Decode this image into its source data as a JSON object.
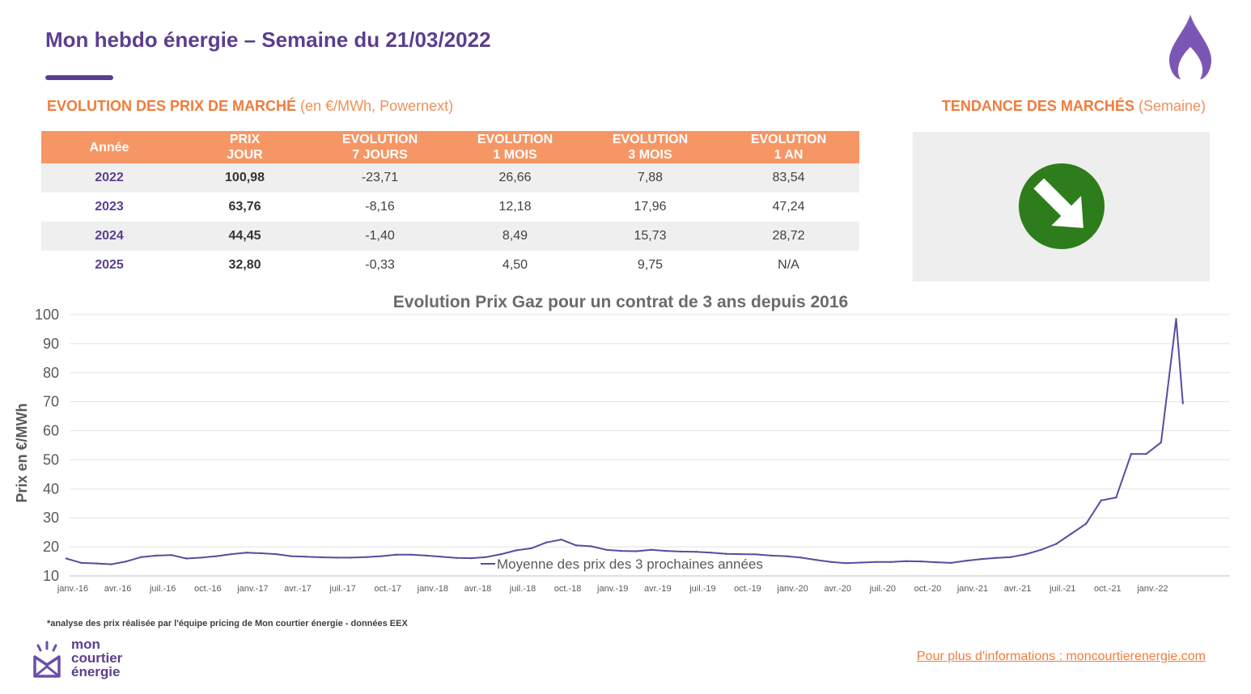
{
  "header": {
    "title": "Mon hebdo énergie – Semaine du 21/03/2022"
  },
  "prices_section": {
    "heading_strong": "EVOLUTION DES PRIX DE MARCHÉ",
    "heading_light": "(en €/MWh, Powernext)",
    "columns": [
      {
        "line1": "Année",
        "line2": ""
      },
      {
        "line1": "PRIX",
        "line2": "JOUR"
      },
      {
        "line1": "EVOLUTION",
        "line2": "7 JOURS"
      },
      {
        "line1": "EVOLUTION",
        "line2": "1 MOIS"
      },
      {
        "line1": "EVOLUTION",
        "line2": "3 MOIS"
      },
      {
        "line1": "EVOLUTION",
        "line2": "1 AN"
      }
    ],
    "rows": [
      {
        "year": "2022",
        "day": "100,98",
        "d7": "-23,71",
        "m1": "26,66",
        "m3": "7,88",
        "y1": "83,54"
      },
      {
        "year": "2023",
        "day": "63,76",
        "d7": "-8,16",
        "m1": "12,18",
        "m3": "17,96",
        "y1": "47,24"
      },
      {
        "year": "2024",
        "day": "44,45",
        "d7": "-1,40",
        "m1": "8,49",
        "m3": "15,73",
        "y1": "28,72"
      },
      {
        "year": "2025",
        "day": "32,80",
        "d7": "-0,33",
        "m1": "4,50",
        "m3": "9,75",
        "y1": "N/A"
      }
    ]
  },
  "trend_section": {
    "heading_strong": "TENDANCE DES MARCHÉS",
    "heading_light": "(Semaine)",
    "trend_icon": "down-right-arrow-icon",
    "trend_color": "#2e7d1c"
  },
  "chart_data": {
    "type": "line",
    "title": "Evolution Prix Gaz pour un contrat de 3 ans depuis 2016",
    "ylabel": "Prix en €/MWh",
    "xlabel": "",
    "ylim": [
      10,
      100
    ],
    "yticks": [
      10,
      20,
      30,
      40,
      50,
      60,
      70,
      80,
      90,
      100
    ],
    "x_tick_labels": [
      "janv.-16",
      "avr.-16",
      "juil.-16",
      "oct.-16",
      "janv.-17",
      "avr.-17",
      "juil.-17",
      "oct.-17",
      "janv.-18",
      "avr.-18",
      "juil.-18",
      "oct.-18",
      "janv.-19",
      "avr.-19",
      "juil.-19",
      "oct.-19",
      "janv.-20",
      "avr.-20",
      "juil.-20",
      "oct.-20",
      "janv.-21",
      "avr.-21",
      "juil.-21",
      "oct.-21",
      "janv.-22"
    ],
    "grid": true,
    "legend_position": "bottom-inside",
    "series": [
      {
        "name": "Moyenne des prix des 3 prochaines années",
        "color": "#5b4a9e",
        "points": [
          [
            "2016-01",
            16
          ],
          [
            "2016-02",
            14.5
          ],
          [
            "2016-03",
            14.3
          ],
          [
            "2016-04",
            14
          ],
          [
            "2016-05",
            15
          ],
          [
            "2016-06",
            16.5
          ],
          [
            "2016-07",
            17
          ],
          [
            "2016-08",
            17.2
          ],
          [
            "2016-09",
            16
          ],
          [
            "2016-10",
            16.3
          ],
          [
            "2016-11",
            16.8
          ],
          [
            "2016-12",
            17.5
          ],
          [
            "2017-01",
            18
          ],
          [
            "2017-02",
            17.8
          ],
          [
            "2017-03",
            17.5
          ],
          [
            "2017-04",
            16.8
          ],
          [
            "2017-05",
            16.6
          ],
          [
            "2017-06",
            16.4
          ],
          [
            "2017-07",
            16.3
          ],
          [
            "2017-08",
            16.3
          ],
          [
            "2017-09",
            16.5
          ],
          [
            "2017-10",
            16.8
          ],
          [
            "2017-11",
            17.3
          ],
          [
            "2017-12",
            17.3
          ],
          [
            "2018-01",
            17
          ],
          [
            "2018-02",
            16.6
          ],
          [
            "2018-03",
            16.2
          ],
          [
            "2018-04",
            16.1
          ],
          [
            "2018-05",
            16.5
          ],
          [
            "2018-06",
            17.5
          ],
          [
            "2018-07",
            18.8
          ],
          [
            "2018-08",
            19.5
          ],
          [
            "2018-09",
            21.5
          ],
          [
            "2018-10",
            22.5
          ],
          [
            "2018-11",
            20.5
          ],
          [
            "2018-12",
            20.2
          ],
          [
            "2019-01",
            19
          ],
          [
            "2019-02",
            18.6
          ],
          [
            "2019-03",
            18.5
          ],
          [
            "2019-04",
            19
          ],
          [
            "2019-05",
            18.6
          ],
          [
            "2019-06",
            18.4
          ],
          [
            "2019-07",
            18.3
          ],
          [
            "2019-08",
            18
          ],
          [
            "2019-09",
            17.6
          ],
          [
            "2019-10",
            17.5
          ],
          [
            "2019-11",
            17.4
          ],
          [
            "2019-12",
            17
          ],
          [
            "2020-01",
            16.8
          ],
          [
            "2020-02",
            16.3
          ],
          [
            "2020-03",
            15.5
          ],
          [
            "2020-04",
            14.8
          ],
          [
            "2020-05",
            14.4
          ],
          [
            "2020-06",
            14.6
          ],
          [
            "2020-07",
            14.8
          ],
          [
            "2020-08",
            14.8
          ],
          [
            "2020-09",
            15.1
          ],
          [
            "2020-10",
            15
          ],
          [
            "2020-11",
            14.7
          ],
          [
            "2020-12",
            14.5
          ],
          [
            "2021-01",
            15.2
          ],
          [
            "2021-02",
            15.8
          ],
          [
            "2021-03",
            16.2
          ],
          [
            "2021-04",
            16.5
          ],
          [
            "2021-05",
            17.5
          ],
          [
            "2021-06",
            19
          ],
          [
            "2021-07",
            21
          ],
          [
            "2021-08",
            24.5
          ],
          [
            "2021-09",
            28
          ],
          [
            "2021-10",
            36
          ],
          [
            "2021-11",
            37
          ],
          [
            "2021-12",
            52
          ],
          [
            "2022-01",
            52
          ],
          [
            "2022-02",
            56
          ],
          [
            "2022-03",
            98.5
          ],
          [
            "2022-03",
            69.5
          ]
        ]
      }
    ]
  },
  "footer": {
    "footnote": "*analyse des prix réalisée par l'équipe pricing de Mon courtier énergie -  données EEX",
    "brand_line1": "mon",
    "brand_line2": "courtier",
    "brand_line3": "énergie",
    "link_text": "Pour plus d'informations : moncourtierenergie.com"
  },
  "colors": {
    "brand_purple": "#5b3f8f",
    "accent_orange": "#f07c3a",
    "table_header": "#f79665",
    "row_shade": "#efefef",
    "series_line": "#5b4a9e"
  }
}
